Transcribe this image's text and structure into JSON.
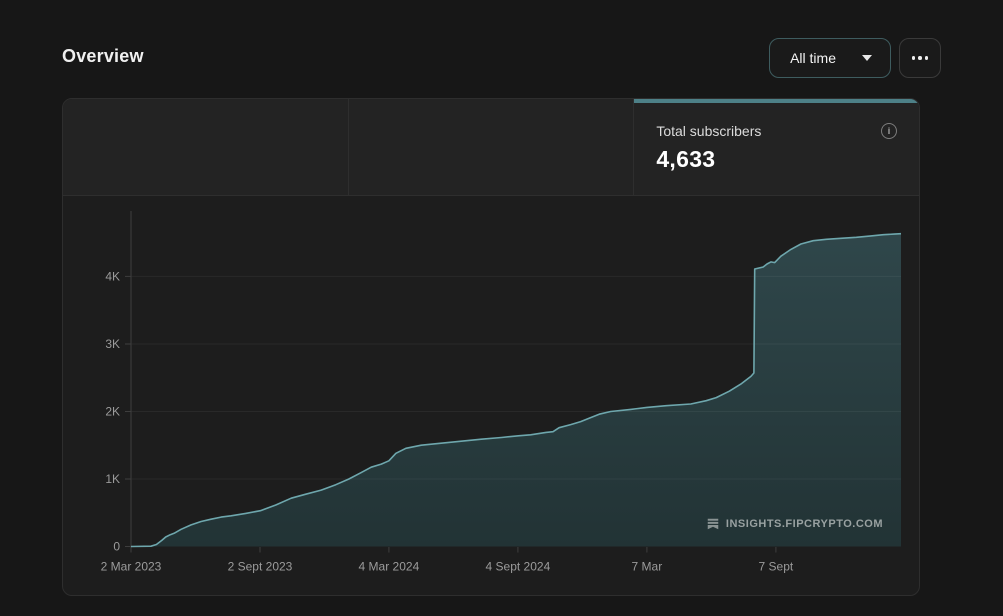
{
  "header": {
    "title": "Overview",
    "time_range": "All time"
  },
  "stats": {
    "cells": [
      {
        "label": "",
        "value": ""
      },
      {
        "label": "",
        "value": ""
      },
      {
        "label": "Total subscribers",
        "value": "4,633",
        "selected": true
      }
    ]
  },
  "watermark": {
    "text": "INSIGHTS.FIPCRYPTO.COM"
  },
  "colors": {
    "page_bg": "#171717",
    "card_bg": "#1d1d1d",
    "stats_bg": "#232323",
    "border": "#2e2e2e",
    "accent": "#4d8087",
    "line": "#6ea7ad",
    "fill_top": "#30484c",
    "fill_bottom": "#223335",
    "tick_text": "#9b9b9b"
  },
  "chart_data": {
    "type": "area",
    "title": "Total subscribers over time",
    "ylabel": "",
    "xlabel": "",
    "ylim": [
      0,
      4925
    ],
    "grid": true,
    "yticks": [
      {
        "label": "0",
        "value": 0
      },
      {
        "label": "1K",
        "value": 1000
      },
      {
        "label": "2K",
        "value": 2000
      },
      {
        "label": "3K",
        "value": 3000
      },
      {
        "label": "4K",
        "value": 4000
      }
    ],
    "xticks": [
      {
        "label": "2 Mar 2023",
        "pos": 0
      },
      {
        "label": "2 Sept 2023",
        "pos": 0.1675
      },
      {
        "label": "4 Mar 2024",
        "pos": 0.335
      },
      {
        "label": "4 Sept 2024",
        "pos": 0.5025
      },
      {
        "label": "7 Mar",
        "pos": 0.67
      },
      {
        "label": "7 Sept",
        "pos": 0.8375
      }
    ],
    "points": [
      [
        0.0,
        0
      ],
      [
        0.026,
        5
      ],
      [
        0.033,
        30
      ],
      [
        0.04,
        90
      ],
      [
        0.045,
        140
      ],
      [
        0.051,
        175
      ],
      [
        0.056,
        195
      ],
      [
        0.065,
        255
      ],
      [
        0.078,
        320
      ],
      [
        0.091,
        370
      ],
      [
        0.104,
        405
      ],
      [
        0.117,
        435
      ],
      [
        0.13,
        455
      ],
      [
        0.149,
        490
      ],
      [
        0.168,
        530
      ],
      [
        0.188,
        615
      ],
      [
        0.208,
        715
      ],
      [
        0.227,
        775
      ],
      [
        0.247,
        835
      ],
      [
        0.266,
        915
      ],
      [
        0.283,
        1000
      ],
      [
        0.299,
        1095
      ],
      [
        0.312,
        1175
      ],
      [
        0.325,
        1220
      ],
      [
        0.335,
        1270
      ],
      [
        0.344,
        1380
      ],
      [
        0.357,
        1455
      ],
      [
        0.377,
        1500
      ],
      [
        0.403,
        1530
      ],
      [
        0.429,
        1560
      ],
      [
        0.455,
        1590
      ],
      [
        0.481,
        1615
      ],
      [
        0.503,
        1640
      ],
      [
        0.519,
        1655
      ],
      [
        0.539,
        1690
      ],
      [
        0.548,
        1700
      ],
      [
        0.556,
        1760
      ],
      [
        0.571,
        1805
      ],
      [
        0.584,
        1850
      ],
      [
        0.595,
        1900
      ],
      [
        0.608,
        1960
      ],
      [
        0.623,
        2000
      ],
      [
        0.649,
        2030
      ],
      [
        0.67,
        2060
      ],
      [
        0.695,
        2085
      ],
      [
        0.727,
        2110
      ],
      [
        0.747,
        2160
      ],
      [
        0.76,
        2205
      ],
      [
        0.777,
        2300
      ],
      [
        0.792,
        2405
      ],
      [
        0.805,
        2520
      ],
      [
        0.809,
        2570
      ],
      [
        0.81,
        4110
      ],
      [
        0.821,
        4140
      ],
      [
        0.826,
        4185
      ],
      [
        0.831,
        4215
      ],
      [
        0.836,
        4205
      ],
      [
        0.844,
        4300
      ],
      [
        0.857,
        4400
      ],
      [
        0.87,
        4480
      ],
      [
        0.886,
        4530
      ],
      [
        0.903,
        4550
      ],
      [
        0.922,
        4565
      ],
      [
        0.942,
        4580
      ],
      [
        0.961,
        4600
      ],
      [
        0.977,
        4618
      ],
      [
        0.991,
        4628
      ],
      [
        1.0,
        4633
      ]
    ]
  }
}
